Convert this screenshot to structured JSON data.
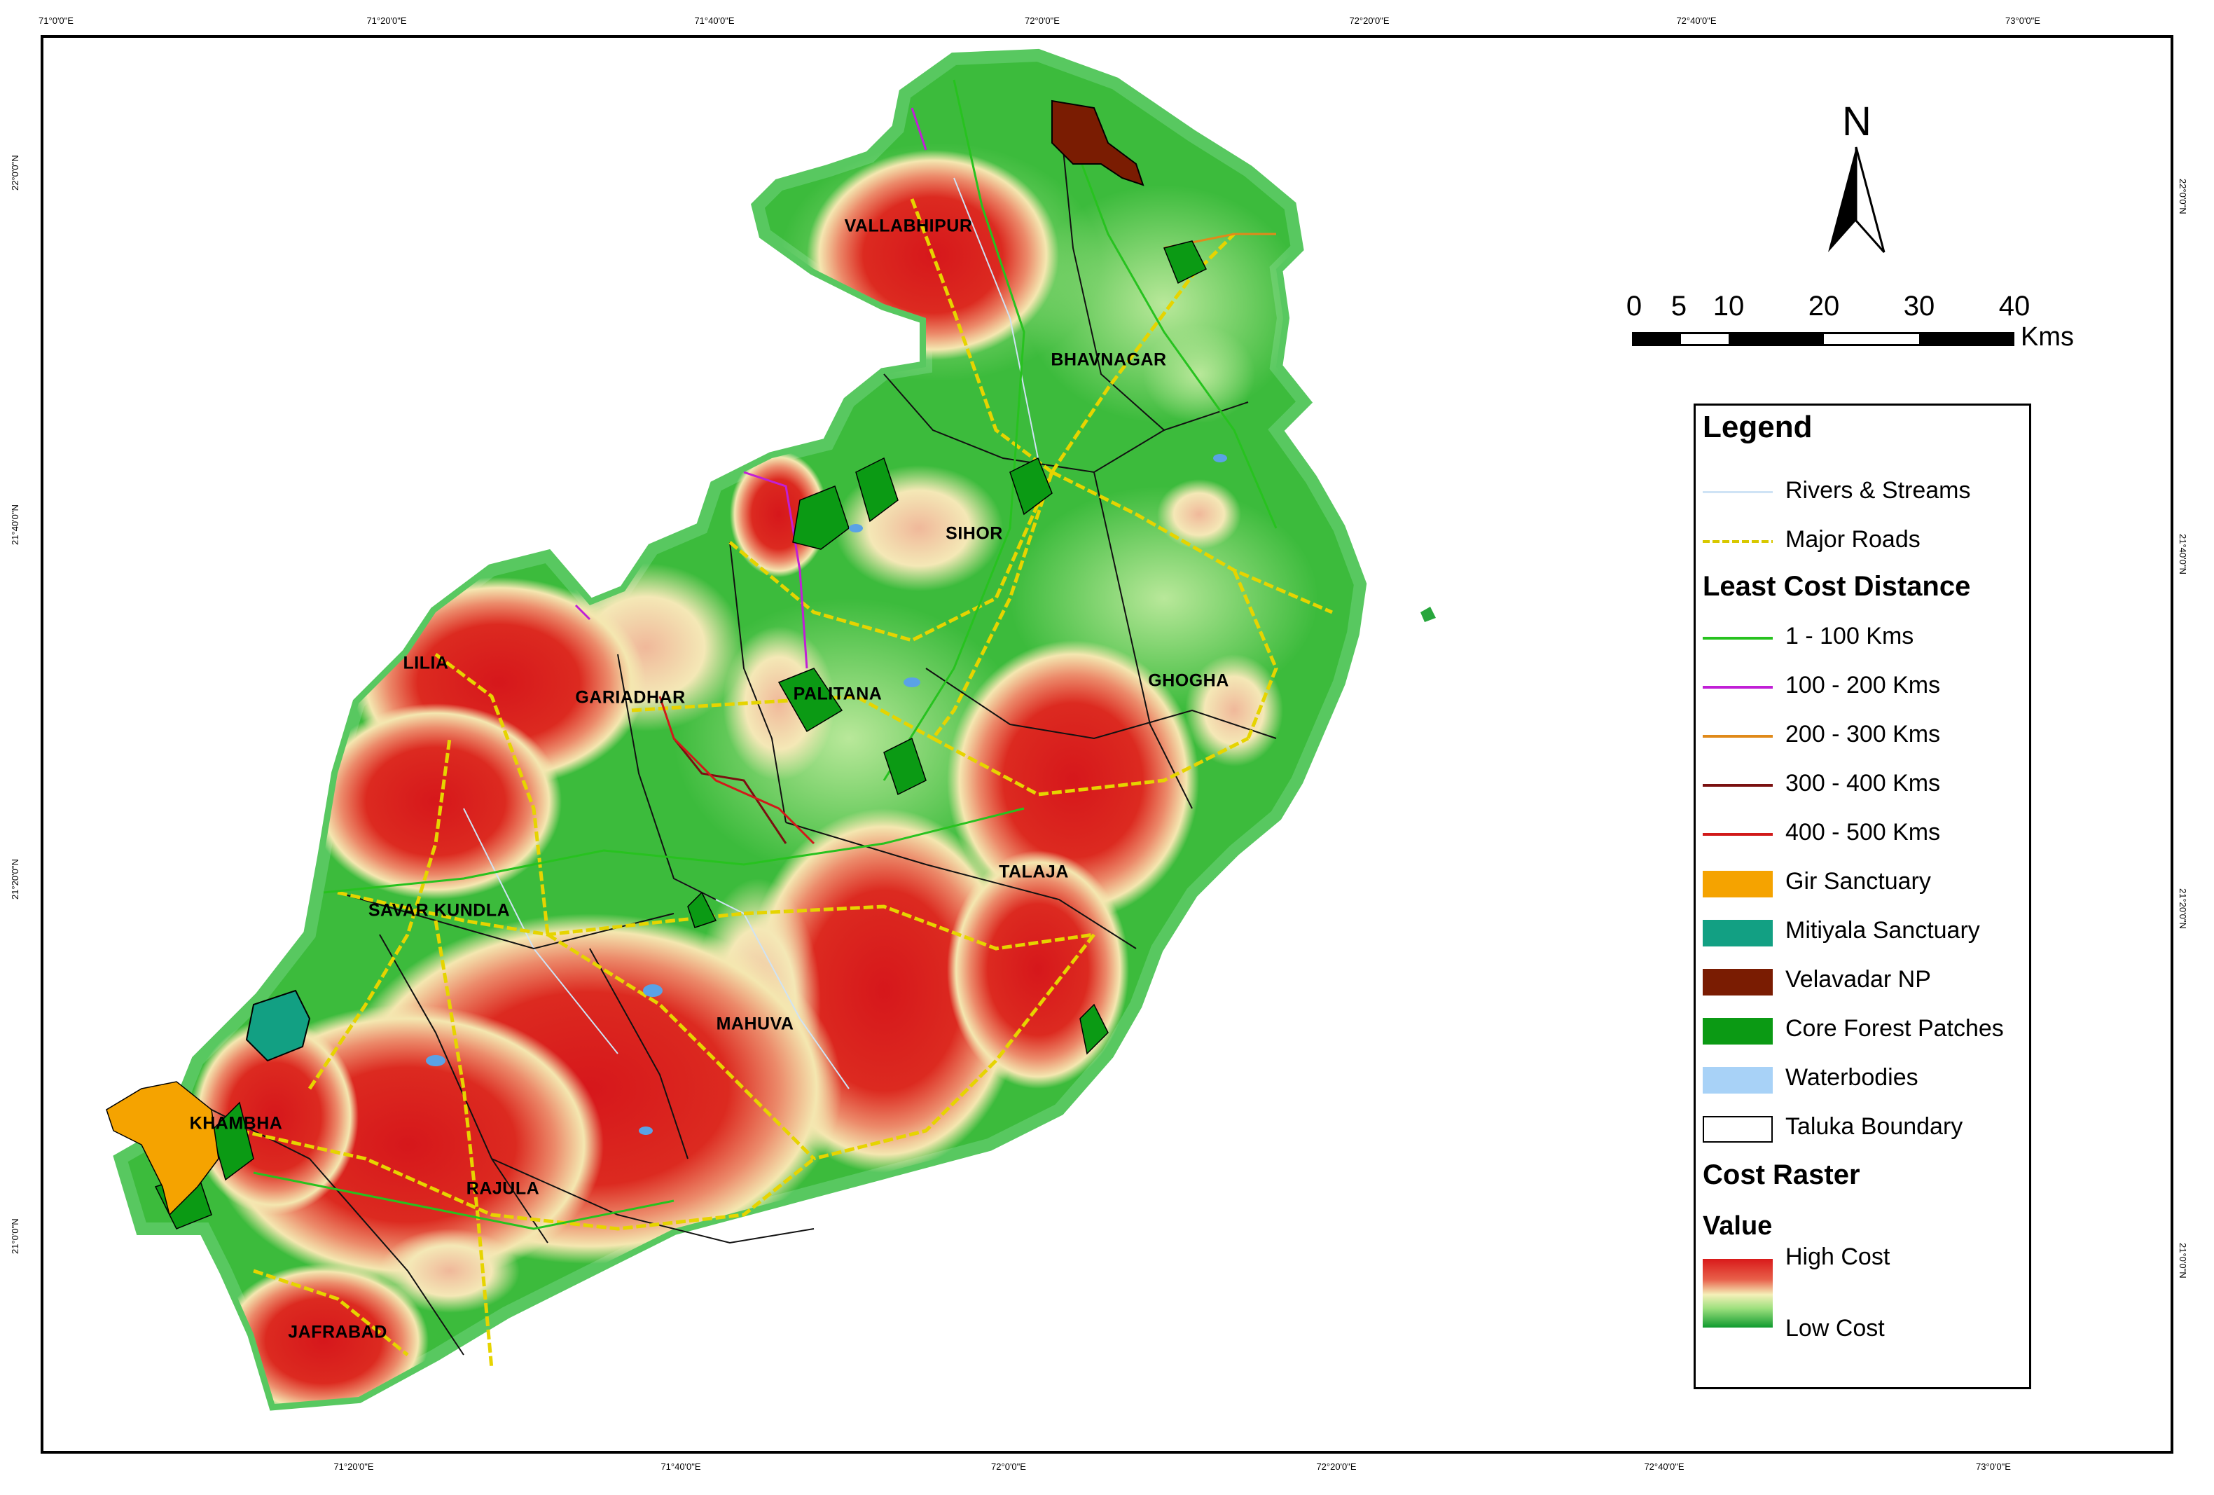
{
  "grid": {
    "top_ticks": [
      "71°0'0\"E",
      "71°20'0\"E",
      "71°40'0\"E",
      "72°0'0\"E",
      "72°20'0\"E",
      "72°40'0\"E",
      "73°0'0\"E"
    ],
    "bottom_ticks": [
      "71°20'0\"E",
      "71°40'0\"E",
      "72°0'0\"E",
      "72°20'0\"E",
      "72°40'0\"E",
      "73°0'0\"E"
    ],
    "left_ticks": [
      "22°0'0\"N",
      "21°40'0\"N",
      "21°20'0\"N",
      "21°0'0\"N"
    ],
    "right_ticks": [
      "22°0'0\"N",
      "21°40'0\"N",
      "21°20'0\"N",
      "21°0'0\"N"
    ]
  },
  "places": [
    "VALLABHIPUR",
    "BHAVNAGAR",
    "SIHOR",
    "LILIA",
    "GARIADHAR",
    "PALITANA",
    "GHOGHA",
    "TALAJA",
    "SAVAR KUNDLA",
    "MAHUVA",
    "KHAMBHA",
    "RAJULA",
    "JAFRABAD"
  ],
  "north_label": "N",
  "scale": {
    "ticks": [
      "0",
      "5",
      "10",
      "20",
      "30",
      "40"
    ],
    "unit": "Kms"
  },
  "legend": {
    "title": "Legend",
    "items_top": [
      {
        "label": "Rivers & Streams",
        "symbol": "line",
        "color": "#cfe3f5"
      },
      {
        "label": "Major Roads",
        "symbol": "dashed-line",
        "color": "#e6d400"
      }
    ],
    "section_least_cost": "Least Cost Distance",
    "items_cost": [
      {
        "label": "1 - 100 Kms",
        "symbol": "line",
        "color": "#27c21f"
      },
      {
        "label": "100 - 200 Kms",
        "symbol": "line",
        "color": "#c11fd6"
      },
      {
        "label": "200 - 300 Kms",
        "symbol": "line",
        "color": "#e08a1a"
      },
      {
        "label": "300 - 400 Kms",
        "symbol": "line",
        "color": "#7a1010"
      },
      {
        "label": "400 - 500 Kms",
        "symbol": "line",
        "color": "#d11a1a"
      }
    ],
    "items_areas": [
      {
        "label": "Gir Sanctuary",
        "symbol": "box",
        "color": "#f5a300"
      },
      {
        "label": "Mitiyala Sanctuary",
        "symbol": "box",
        "color": "#12a083"
      },
      {
        "label": "Velavadar NP",
        "symbol": "box",
        "color": "#7a1c02"
      },
      {
        "label": "Core Forest Patches",
        "symbol": "box",
        "color": "#0b9a14"
      },
      {
        "label": "Waterbodies",
        "symbol": "box",
        "color": "#a8d2f7"
      },
      {
        "label": "Taluka Boundary",
        "symbol": "outline",
        "color": "#000000"
      }
    ],
    "section_cost_raster": "Cost Raster",
    "value_label": "Value",
    "high_label": "High Cost",
    "low_label": "Low Cost",
    "ramp_colors": [
      "#d91a1a",
      "#f5f0b8",
      "#0f9a2e"
    ]
  }
}
